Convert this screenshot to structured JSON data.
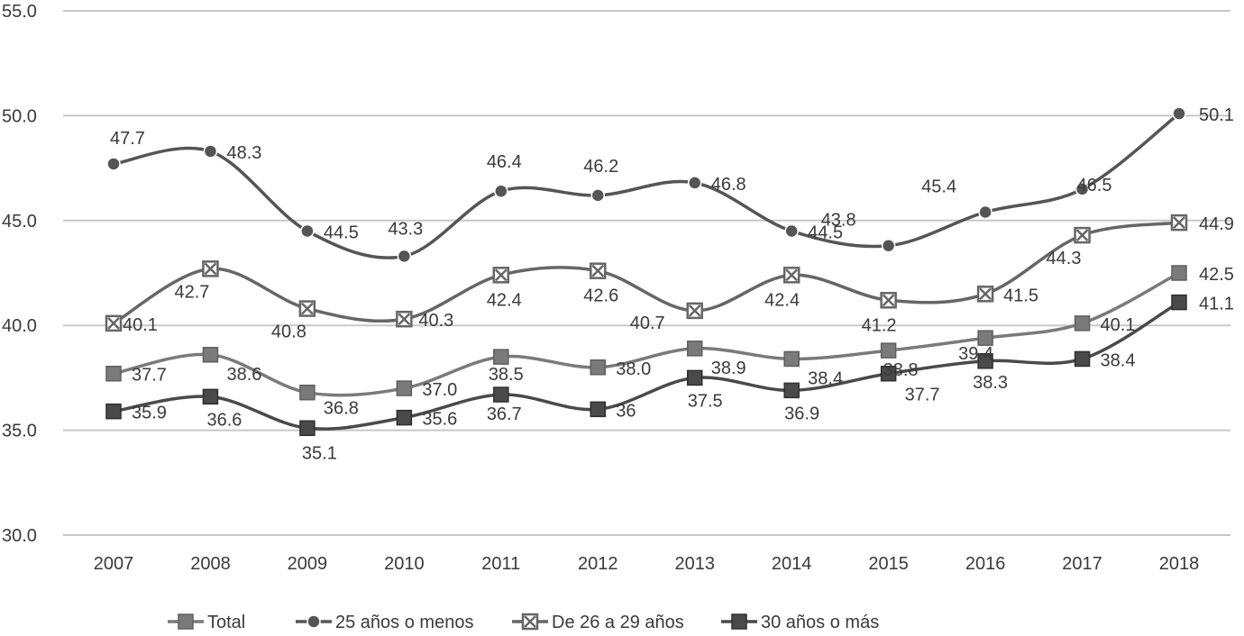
{
  "chart_data": {
    "type": "line",
    "title": "",
    "xlabel": "",
    "ylabel": "",
    "ylim": [
      30,
      55
    ],
    "yticks": [
      30,
      35,
      40,
      45,
      50,
      55
    ],
    "ytick_labels": [
      "30.0",
      "35.0",
      "40.0",
      "45.0",
      "50.0",
      "55.0"
    ],
    "grid": true,
    "legend_position": "bottom",
    "categories": [
      "2007",
      "2008",
      "2009",
      "2010",
      "2011",
      "2012",
      "2013",
      "2014",
      "2015",
      "2016",
      "2017",
      "2018"
    ],
    "series": [
      {
        "name": "Total",
        "marker": "square",
        "color": "#7a7a7a",
        "values": [
          37.7,
          38.6,
          36.8,
          37.0,
          38.5,
          38.0,
          38.9,
          38.4,
          38.8,
          39.4,
          40.1,
          42.5
        ],
        "labels": [
          "37.7",
          "38.6",
          "36.8",
          "37.0",
          "38.5",
          "38.0",
          "38.9",
          "38.4",
          "38.8",
          "39.4",
          "40.1",
          "42.5"
        ]
      },
      {
        "name": "25 años o menos",
        "marker": "circle",
        "color": "#555555",
        "values": [
          47.7,
          48.3,
          44.5,
          43.3,
          46.4,
          46.2,
          46.8,
          44.5,
          43.8,
          45.4,
          46.5,
          50.1
        ],
        "labels": [
          "47.7",
          "48.3",
          "44.5",
          "43.3",
          "46.4",
          "46.2",
          "46.8",
          "44.5",
          "43.8",
          "45.4",
          "46.5",
          "50.1"
        ]
      },
      {
        "name": "De 26 a 29 años",
        "marker": "xsquare",
        "color": "#666666",
        "values": [
          40.1,
          42.7,
          40.8,
          40.3,
          42.4,
          42.6,
          40.7,
          42.4,
          41.2,
          41.5,
          44.3,
          44.9
        ],
        "labels": [
          "40.1",
          "42.7",
          "40.8",
          "40.3",
          "42.4",
          "42.6",
          "40.7",
          "42.4",
          "41.2",
          "41.5",
          "44.3",
          "44.9"
        ]
      },
      {
        "name": "30 años o más",
        "marker": "square-dark",
        "color": "#4a4a4a",
        "values": [
          35.9,
          36.6,
          35.1,
          35.6,
          36.7,
          36.0,
          37.5,
          36.9,
          37.7,
          38.3,
          38.4,
          41.1
        ],
        "labels": [
          "35.9",
          "36.6",
          "35.1",
          "35.6",
          "36.7",
          "36",
          "37.5",
          "36.9",
          "37.7",
          "38.3",
          "38.4",
          "41.1"
        ]
      }
    ],
    "colors": {
      "grid": "#c8c8c8",
      "text": "#3a3a3a"
    }
  }
}
